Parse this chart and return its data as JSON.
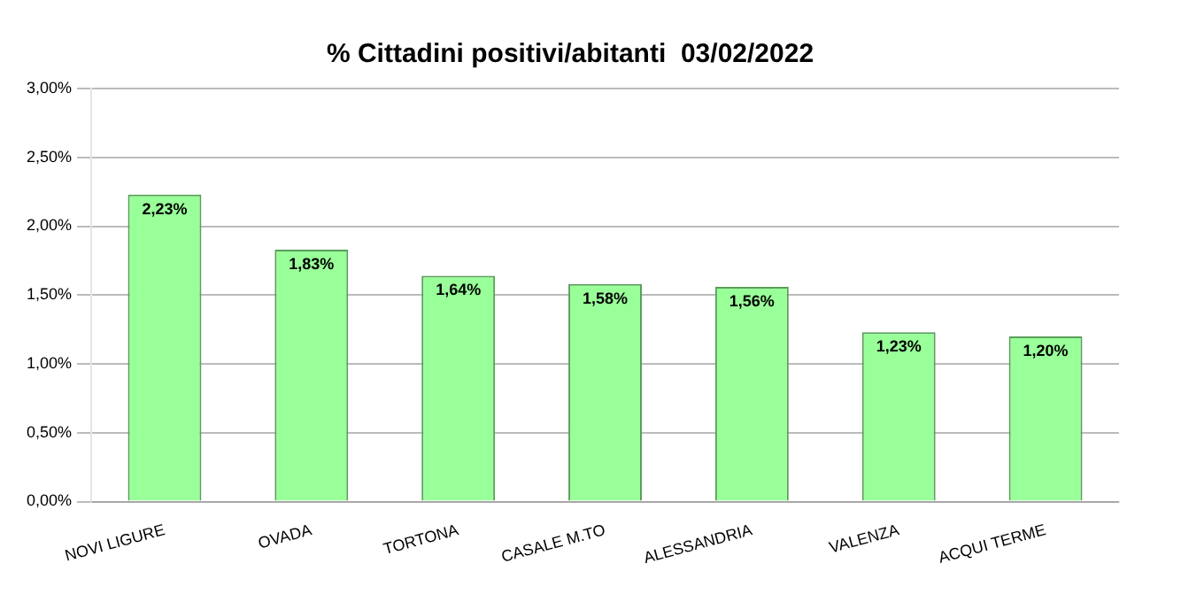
{
  "chart_data": {
    "type": "bar",
    "title": "% Cittadini positivi/abitanti  03/02/2022",
    "categories": [
      "NOVI LIGURE",
      "OVADA",
      "TORTONA",
      "CASALE M.TO",
      "ALESSANDRIA",
      "VALENZA",
      "ACQUI TERME"
    ],
    "values": [
      2.23,
      1.83,
      1.64,
      1.58,
      1.56,
      1.23,
      1.2
    ],
    "value_labels": [
      "2,23%",
      "1,83%",
      "1,64%",
      "1,58%",
      "1,56%",
      "1,23%",
      "1,20%"
    ],
    "color": "#99ff99",
    "ylim": [
      0,
      3
    ],
    "yticks": [
      {
        "value": 0,
        "label": "0,00%"
      },
      {
        "value": 0.5,
        "label": "0,50%"
      },
      {
        "value": 1,
        "label": "1,00%"
      },
      {
        "value": 1.5,
        "label": "1,50%"
      },
      {
        "value": 2,
        "label": "2,00%"
      },
      {
        "value": 2.5,
        "label": "2,50%"
      },
      {
        "value": 3,
        "label": "3,00%"
      }
    ],
    "grid": "y",
    "legend": false
  }
}
